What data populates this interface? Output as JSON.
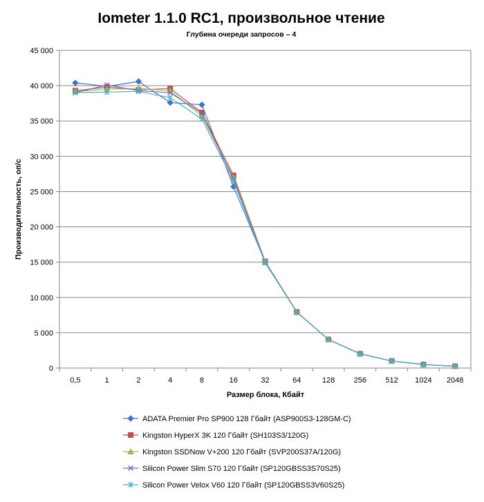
{
  "chart_data": {
    "type": "line",
    "title": "Iometer 1.1.0 RC1, произвольное чтение",
    "subtitle": "Глубина очереди запросов – 4",
    "xlabel": "Размер блока, Кбайт",
    "ylabel": "Производительность,  оп/с",
    "categories": [
      "0,5",
      "1",
      "2",
      "4",
      "8",
      "16",
      "32",
      "64",
      "128",
      "256",
      "512",
      "1024",
      "2048"
    ],
    "ylim": [
      0,
      45000
    ],
    "yticks": [
      0,
      5000,
      10000,
      15000,
      20000,
      25000,
      30000,
      35000,
      40000,
      45000
    ],
    "ytick_labels": [
      "0",
      "5 000",
      "10 000",
      "15 000",
      "20 000",
      "25 000",
      "30 000",
      "35 000",
      "40 000",
      "45 000"
    ],
    "grid": "horizontal",
    "legend_position": "bottom",
    "series": [
      {
        "name": "ADATA  Premier Pro SP900 128 Гбайт (ASP900S3-128GM-C)",
        "color": "#4472C4",
        "marker": "diamond",
        "values": [
          40400,
          39900,
          40600,
          37600,
          37300,
          25700,
          15000,
          7900,
          4050,
          2020,
          1000,
          500,
          250
        ]
      },
      {
        "name": "Kingston HyperX 3K 120 Гбайт (SH103S3/120G)",
        "color": "#C0504D",
        "marker": "square",
        "values": [
          39300,
          39800,
          39400,
          39600,
          36200,
          27300,
          15100,
          7950,
          4050,
          2030,
          1010,
          500,
          260
        ]
      },
      {
        "name": "Kingston SSDNow  V+200 120 Гбайт (SVP200S37A/120G)",
        "color": "#9BBB59",
        "marker": "triangle",
        "values": [
          39200,
          39500,
          39600,
          39300,
          35700,
          27000,
          15050,
          7900,
          4050,
          2020,
          1000,
          500,
          250
        ]
      },
      {
        "name": "Silicon Power Slim S70 120 Гбайт (SP120GBSS3S70S25)",
        "color": "#8064A2",
        "marker": "x",
        "values": [
          39000,
          40100,
          39300,
          39000,
          36100,
          26800,
          15000,
          7900,
          4040,
          2020,
          1000,
          500,
          250
        ]
      },
      {
        "name": "Silicon Power Velox V60 120 Гбайт (SP120GBSS3V60S25)",
        "color": "#4BACC6",
        "marker": "star",
        "values": [
          39000,
          39100,
          39200,
          38300,
          35300,
          26500,
          14900,
          7900,
          4030,
          2010,
          990,
          490,
          250
        ]
      }
    ]
  }
}
